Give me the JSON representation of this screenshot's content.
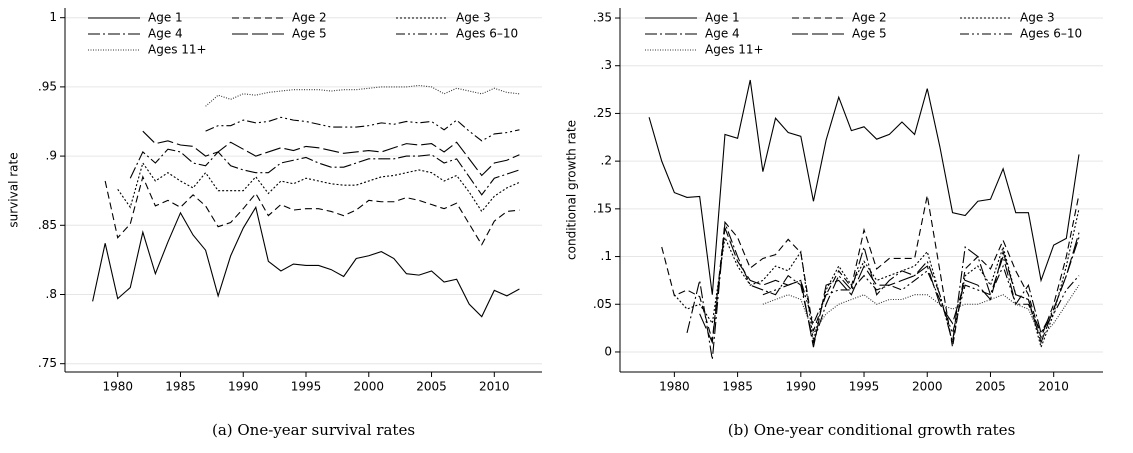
{
  "chart_data": [
    {
      "type": "line",
      "caption": "(a)  One-year survival rates",
      "ylabel": "survival rate",
      "x": [
        1978,
        1979,
        1980,
        1981,
        1982,
        1983,
        1984,
        1985,
        1986,
        1987,
        1988,
        1989,
        1990,
        1991,
        1992,
        1993,
        1994,
        1995,
        1996,
        1997,
        1998,
        1999,
        2000,
        2001,
        2002,
        2003,
        2004,
        2005,
        2006,
        2007,
        2008,
        2009,
        2010,
        2011,
        2012
      ],
      "xlim": [
        1975.8,
        2013.8
      ],
      "xticks": [
        1980,
        1985,
        1990,
        1995,
        2000,
        2005,
        2010
      ],
      "ylim": [
        0.744,
        1.007
      ],
      "yticks": [
        {
          "value": 0.75,
          "label": ".75"
        },
        {
          "value": 0.8,
          "label": ".8"
        },
        {
          "value": 0.85,
          "label": ".85"
        },
        {
          "value": 0.9,
          "label": ".9"
        },
        {
          "value": 0.95,
          "label": ".95"
        },
        1
      ],
      "grid": true,
      "legend": "top-left",
      "series": [
        {
          "name": "Age 1",
          "color": "#000000",
          "dash": "solid",
          "values": [
            0.795,
            0.837,
            0.797,
            0.805,
            0.845,
            0.815,
            0.838,
            0.859,
            0.843,
            0.832,
            0.799,
            0.828,
            0.848,
            0.863,
            0.824,
            0.817,
            0.822,
            0.821,
            0.821,
            0.818,
            0.813,
            0.826,
            0.828,
            0.831,
            0.826,
            0.815,
            0.814,
            0.817,
            0.809,
            0.811,
            0.793,
            0.784,
            0.803,
            0.799,
            0.804
          ]
        },
        {
          "name": "Age 2",
          "color": "#000000",
          "dash": "7 4",
          "values": [
            null,
            0.882,
            0.841,
            0.851,
            0.885,
            0.864,
            0.868,
            0.863,
            0.872,
            0.864,
            0.849,
            0.852,
            0.862,
            0.873,
            0.857,
            0.865,
            0.861,
            0.862,
            0.862,
            0.86,
            0.857,
            0.861,
            0.868,
            0.867,
            0.867,
            0.87,
            0.868,
            0.865,
            0.862,
            0.866,
            0.851,
            0.836,
            0.853,
            0.86,
            0.861
          ]
        },
        {
          "name": "Age 3",
          "color": "#000000",
          "dash": "2 2",
          "values": [
            null,
            null,
            0.876,
            0.863,
            0.895,
            0.882,
            0.888,
            0.882,
            0.877,
            0.888,
            0.875,
            0.875,
            0.875,
            0.885,
            0.873,
            0.882,
            0.88,
            0.884,
            0.882,
            0.88,
            0.879,
            0.879,
            0.882,
            0.885,
            0.886,
            0.888,
            0.89,
            0.888,
            0.882,
            0.886,
            0.874,
            0.86,
            0.871,
            0.877,
            0.881
          ]
        },
        {
          "name": "Age 4",
          "color": "#000000",
          "dash": "12 3 2 3",
          "values": [
            null,
            null,
            null,
            0.884,
            0.903,
            0.895,
            0.905,
            0.903,
            0.895,
            0.893,
            0.903,
            0.893,
            0.89,
            0.888,
            0.888,
            0.895,
            0.897,
            0.899,
            0.895,
            0.892,
            0.892,
            0.895,
            0.898,
            0.898,
            0.898,
            0.9,
            0.9,
            0.901,
            0.895,
            0.898,
            0.885,
            0.872,
            0.884,
            0.887,
            0.89
          ]
        },
        {
          "name": "Age 5",
          "color": "#000000",
          "dash": "16 4",
          "values": [
            null,
            null,
            null,
            null,
            0.918,
            0.909,
            0.911,
            0.908,
            0.907,
            0.9,
            0.903,
            0.91,
            0.905,
            0.9,
            0.903,
            0.906,
            0.904,
            0.907,
            0.906,
            0.904,
            0.902,
            0.903,
            0.904,
            0.903,
            0.906,
            0.909,
            0.908,
            0.909,
            0.903,
            0.91,
            0.898,
            0.886,
            0.895,
            0.897,
            0.901
          ]
        },
        {
          "name": "Ages 6–10",
          "color": "#000000",
          "dash": "9 3 2 3 2 3",
          "values": [
            null,
            null,
            null,
            null,
            null,
            null,
            null,
            null,
            null,
            0.918,
            0.922,
            0.922,
            0.926,
            0.924,
            0.925,
            0.928,
            0.926,
            0.925,
            0.923,
            0.921,
            0.921,
            0.921,
            0.922,
            0.924,
            0.923,
            0.925,
            0.924,
            0.925,
            0.919,
            0.926,
            0.918,
            0.911,
            0.916,
            0.917,
            0.919
          ]
        },
        {
          "name": "Ages 11+",
          "color": "#333333",
          "dash": "1 1.5",
          "values": [
            null,
            null,
            null,
            null,
            null,
            null,
            null,
            null,
            null,
            0.936,
            0.944,
            0.941,
            0.945,
            0.944,
            0.946,
            0.947,
            0.948,
            0.948,
            0.948,
            0.947,
            0.948,
            0.948,
            0.949,
            0.95,
            0.95,
            0.95,
            0.951,
            0.95,
            0.945,
            0.949,
            0.947,
            0.945,
            0.949,
            0.946,
            0.945
          ]
        }
      ]
    },
    {
      "type": "line",
      "caption": "(b) One-year conditional growth rates",
      "ylabel": "conditional growth rate",
      "x": [
        1978,
        1979,
        1980,
        1981,
        1982,
        1983,
        1984,
        1985,
        1986,
        1987,
        1988,
        1989,
        1990,
        1991,
        1992,
        1993,
        1994,
        1995,
        1996,
        1997,
        1998,
        1999,
        2000,
        2001,
        2002,
        2003,
        2004,
        2005,
        2006,
        2007,
        2008,
        2009,
        2010,
        2011,
        2012
      ],
      "xlim": [
        1975.7,
        2013.9
      ],
      "xticks": [
        1980,
        1985,
        1990,
        1995,
        2000,
        2005,
        2010
      ],
      "ylim": [
        -0.021,
        0.3605
      ],
      "yticks": [
        0,
        {
          "value": 0.05,
          "label": ".05"
        },
        {
          "value": 0.1,
          "label": ".1"
        },
        {
          "value": 0.15,
          "label": ".15"
        },
        {
          "value": 0.2,
          "label": ".2"
        },
        {
          "value": 0.25,
          "label": ".25"
        },
        {
          "value": 0.3,
          "label": ".3"
        },
        {
          "value": 0.35,
          "label": ".35"
        }
      ],
      "grid": true,
      "legend": "top-left",
      "series": [
        {
          "name": "Age 1",
          "color": "#000000",
          "dash": "solid",
          "values": [
            0.246,
            0.2,
            0.167,
            0.162,
            0.163,
            0.06,
            0.228,
            0.224,
            0.285,
            0.189,
            0.245,
            0.23,
            0.226,
            0.158,
            0.222,
            0.267,
            0.232,
            0.236,
            0.223,
            0.228,
            0.241,
            0.228,
            0.276,
            0.215,
            0.146,
            0.143,
            0.158,
            0.16,
            0.192,
            0.146,
            0.146,
            0.075,
            0.112,
            0.119,
            0.207
          ]
        },
        {
          "name": "Age 2",
          "color": "#000000",
          "dash": "7 4",
          "values": [
            null,
            0.11,
            0.059,
            0.065,
            0.058,
            0.012,
            0.136,
            0.12,
            0.088,
            0.098,
            0.102,
            0.118,
            0.104,
            0.022,
            0.06,
            0.085,
            0.068,
            0.128,
            0.087,
            0.098,
            0.098,
            0.098,
            0.164,
            0.085,
            0.005,
            0.087,
            0.1,
            0.087,
            0.117,
            0.085,
            0.06,
            0.015,
            0.05,
            0.1,
            0.165
          ]
        },
        {
          "name": "Age 3",
          "color": "#000000",
          "dash": "2 2",
          "values": [
            null,
            null,
            0.06,
            0.045,
            0.05,
            0.03,
            0.12,
            0.09,
            0.07,
            0.075,
            0.09,
            0.085,
            0.105,
            0.012,
            0.065,
            0.09,
            0.07,
            0.095,
            0.075,
            0.08,
            0.085,
            0.09,
            0.105,
            0.06,
            0.01,
            0.08,
            0.09,
            0.07,
            0.11,
            0.06,
            0.055,
            0.005,
            0.04,
            0.09,
            0.15
          ]
        },
        {
          "name": "Age 4",
          "color": "#000000",
          "dash": "12 3 2 3",
          "values": [
            null,
            null,
            null,
            0.02,
            0.075,
            -0.008,
            0.135,
            0.1,
            0.07,
            0.065,
            0.06,
            0.08,
            0.07,
            0.01,
            0.05,
            0.08,
            0.065,
            0.11,
            0.06,
            0.075,
            0.085,
            0.08,
            0.095,
            0.06,
            0.01,
            0.11,
            0.1,
            0.06,
            0.1,
            0.05,
            0.07,
            0.02,
            0.045,
            0.08,
            0.12
          ]
        },
        {
          "name": "Age 5",
          "color": "#000000",
          "dash": "16 4",
          "values": [
            null,
            null,
            null,
            null,
            0.04,
            0.01,
            0.13,
            0.095,
            0.075,
            0.07,
            0.075,
            0.07,
            0.075,
            0.005,
            0.07,
            0.075,
            0.06,
            0.09,
            0.07,
            0.07,
            0.075,
            0.08,
            0.09,
            0.05,
            0.03,
            0.075,
            0.07,
            0.055,
            0.105,
            0.06,
            0.055,
            0.01,
            0.045,
            0.08,
            0.125
          ]
        },
        {
          "name": "Ages 6–10",
          "color": "#000000",
          "dash": "9 3 2 3 2 3",
          "values": [
            null,
            null,
            null,
            null,
            null,
            null,
            null,
            null,
            null,
            0.06,
            0.065,
            0.07,
            0.075,
            0.03,
            0.06,
            0.065,
            0.065,
            0.08,
            0.065,
            0.07,
            0.065,
            0.075,
            0.085,
            0.055,
            0.02,
            0.07,
            0.065,
            0.06,
            0.09,
            0.05,
            0.05,
            0.02,
            0.04,
            0.065,
            0.08
          ]
        },
        {
          "name": "Ages 11+",
          "color": "#333333",
          "dash": "1 1.5",
          "values": [
            null,
            null,
            null,
            null,
            null,
            null,
            null,
            null,
            null,
            0.05,
            0.055,
            0.06,
            0.055,
            0.02,
            0.04,
            0.05,
            0.055,
            0.06,
            0.05,
            0.055,
            0.055,
            0.06,
            0.06,
            0.05,
            0.045,
            0.05,
            0.05,
            0.055,
            0.06,
            0.05,
            0.045,
            0.015,
            0.03,
            0.05,
            0.07
          ]
        }
      ]
    }
  ]
}
